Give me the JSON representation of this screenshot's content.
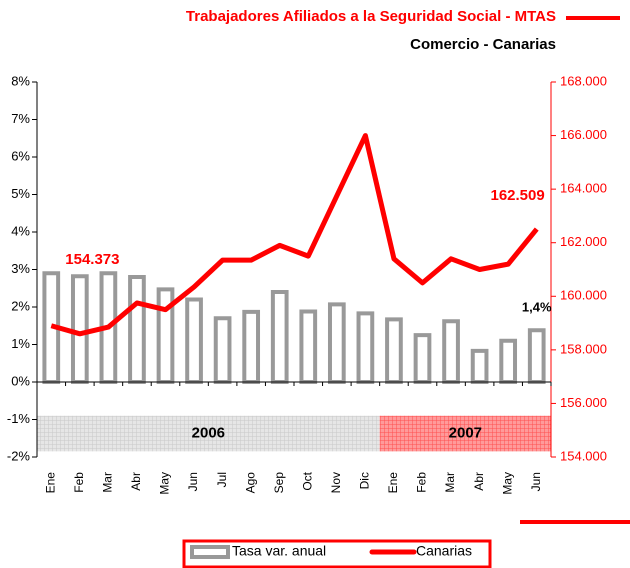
{
  "chart_data": {
    "type": "bar",
    "title": "Trabajadores Afiliados a la Seguridad Social - MTAS",
    "subtitle": "Comercio - Canarias",
    "categories": [
      "Ene",
      "Feb",
      "Mar",
      "Abr",
      "May",
      "Jun",
      "Jul",
      "Ago",
      "Sep",
      "Oct",
      "Nov",
      "Dic",
      "Ene",
      "Feb",
      "Mar",
      "Abr",
      "May",
      "Jun"
    ],
    "year_groups": [
      "2006",
      "2007"
    ],
    "series": [
      {
        "name": "Tasa var. anual",
        "type": "bar",
        "color": "#999999",
        "values": [
          2.9,
          2.82,
          2.9,
          2.8,
          2.47,
          2.2,
          1.7,
          1.87,
          2.4,
          1.88,
          2.07,
          1.83,
          1.67,
          1.25,
          1.62,
          0.83,
          1.1,
          1.38
        ],
        "value_labels": [
          null,
          null,
          null,
          null,
          null,
          null,
          null,
          null,
          null,
          null,
          null,
          null,
          null,
          null,
          null,
          null,
          null,
          "1,4%"
        ]
      },
      {
        "name": "Canarias",
        "type": "line",
        "axis": "y2",
        "color": "#ff0000",
        "values": [
          158900,
          158600,
          158850,
          159750,
          159500,
          160350,
          161350,
          161350,
          161900,
          161500,
          163750,
          166000,
          161400,
          160500,
          161400,
          161000,
          161200,
          162509
        ],
        "value_labels": [
          null,
          null,
          null,
          null,
          null,
          null,
          null,
          null,
          null,
          null,
          null,
          null,
          null,
          null,
          null,
          null,
          null,
          "162.509"
        ]
      }
    ],
    "annotations": [
      "154.373"
    ],
    "ylim": [
      -2,
      8
    ],
    "yticks": [
      {
        "value": -2,
        "label": "-2%"
      },
      {
        "value": -1,
        "label": "-1%"
      },
      {
        "value": 0,
        "label": "0%"
      },
      {
        "value": 1,
        "label": "1%"
      },
      {
        "value": 2,
        "label": "2%"
      },
      {
        "value": 3,
        "label": "3%"
      },
      {
        "value": 4,
        "label": "4%"
      },
      {
        "value": 5,
        "label": "5%"
      },
      {
        "value": 6,
        "label": "6%"
      },
      {
        "value": 7,
        "label": "7%"
      },
      {
        "value": 8,
        "label": "8%"
      }
    ],
    "y2lim": [
      154000,
      168000
    ],
    "y2ticks": [
      {
        "value": 154000,
        "label": "154.000"
      },
      {
        "value": 156000,
        "label": "156.000"
      },
      {
        "value": 158000,
        "label": "158.000"
      },
      {
        "value": 160000,
        "label": "160.000"
      },
      {
        "value": 162000,
        "label": "162.000"
      },
      {
        "value": 164000,
        "label": "164.000"
      },
      {
        "value": 166000,
        "label": "166.000"
      },
      {
        "value": 168000,
        "label": "168.000"
      }
    ],
    "y2color": "#ff0000",
    "legend": "bottom",
    "grid": false
  }
}
